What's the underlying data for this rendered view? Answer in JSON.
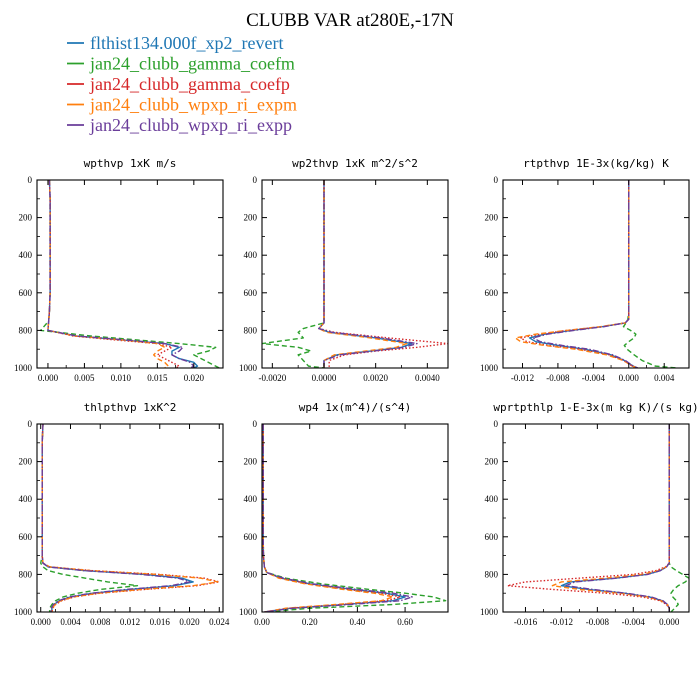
{
  "title": "CLUBB VAR at280E,-17N",
  "legend": [
    {
      "name": "flthist134.000f_xp2_revert",
      "color": "#1f77b4",
      "dash": "solid"
    },
    {
      "name": "jan24_clubb_gamma_coefm",
      "color": "#2ca02c",
      "dash": "dash"
    },
    {
      "name": "jan24_clubb_gamma_coefp",
      "color": "#d62728",
      "dash": "dot"
    },
    {
      "name": "jan24_clubb_wpxp_ri_expm",
      "color": "#ff7f0e",
      "dash": "dash"
    },
    {
      "name": "jan24_clubb_wpxp_ri_expp",
      "color": "#6a3d9a",
      "dash": "dashdot"
    }
  ],
  "chart_data": [
    {
      "type": "line",
      "title": "wpthvp  1xK m/s",
      "xlim": [
        -0.0015,
        0.024
      ],
      "xticks": [
        0.0,
        0.005,
        0.01,
        0.015,
        0.02
      ],
      "xticklabels": [
        "0.000",
        "0.005",
        "0.010",
        "0.015",
        "0.020"
      ],
      "ylim": [
        1000,
        0
      ],
      "yticks": [
        0,
        200,
        400,
        600,
        800,
        1000
      ],
      "y": [
        0,
        100,
        200,
        300,
        400,
        500,
        600,
        700,
        750,
        800,
        830,
        850,
        870,
        890,
        910,
        930,
        950,
        970,
        990,
        1000
      ],
      "series": [
        {
          "name": "flthist134.000f_xp2_revert",
          "values": [
            0.0002,
            0.0003,
            0.0003,
            0.0003,
            0.0003,
            0.0003,
            0.0003,
            0.0002,
            0.0001,
            0.0,
            0.004,
            0.01,
            0.016,
            0.018,
            0.017,
            0.017,
            0.018,
            0.02,
            0.0205,
            0.02
          ]
        },
        {
          "name": "jan24_clubb_gamma_coefm",
          "values": [
            0.0002,
            0.0003,
            0.0003,
            0.0003,
            0.0003,
            0.0003,
            0.0003,
            0.0002,
            0.0001,
            -0.001,
            0.006,
            0.012,
            0.018,
            0.023,
            0.022,
            0.02,
            0.021,
            0.022,
            0.023,
            0.0235
          ]
        },
        {
          "name": "jan24_clubb_gamma_coefp",
          "values": [
            0.0002,
            0.0003,
            0.0003,
            0.0003,
            0.0003,
            0.0003,
            0.0003,
            0.0002,
            0.0001,
            0.0,
            0.0035,
            0.009,
            0.015,
            0.017,
            0.016,
            0.015,
            0.016,
            0.017,
            0.018,
            0.0175
          ]
        },
        {
          "name": "jan24_clubb_wpxp_ri_expm",
          "values": [
            0.0002,
            0.0003,
            0.0003,
            0.0003,
            0.0003,
            0.0003,
            0.0003,
            0.0002,
            0.0001,
            0.0,
            0.0038,
            0.01,
            0.015,
            0.016,
            0.015,
            0.0145,
            0.015,
            0.016,
            0.0165,
            0.016
          ]
        },
        {
          "name": "jan24_clubb_wpxp_ri_expp",
          "values": [
            0.0002,
            0.0003,
            0.0003,
            0.0003,
            0.0003,
            0.0003,
            0.0003,
            0.0002,
            0.0001,
            0.0,
            0.004,
            0.0105,
            0.016,
            0.0185,
            0.018,
            0.017,
            0.018,
            0.0195,
            0.02,
            0.0195
          ]
        }
      ]
    },
    {
      "type": "line",
      "title": "wp2thvp  1xK m^2/s^2",
      "xlim": [
        -0.0024,
        0.0048
      ],
      "xticks": [
        -0.002,
        0.0,
        0.002,
        0.004
      ],
      "xticklabels": [
        "-0.0020",
        "0.0000",
        "0.0020",
        "0.0040"
      ],
      "ylim": [
        1000,
        0
      ],
      "yticks": [
        0,
        200,
        400,
        600,
        800,
        1000
      ],
      "y": [
        0,
        200,
        400,
        600,
        700,
        760,
        790,
        810,
        840,
        870,
        890,
        910,
        930,
        960,
        990,
        1000
      ],
      "series": [
        {
          "name": "flthist134.000f_xp2_revert",
          "values": [
            0.0,
            0.0,
            0.0,
            0.0,
            0.0,
            0.0,
            -0.0002,
            0.0002,
            0.002,
            0.0034,
            0.003,
            0.0018,
            0.0005,
            0.0,
            0.0,
            0.0
          ]
        },
        {
          "name": "jan24_clubb_gamma_coefm",
          "values": [
            0.0,
            0.0,
            0.0,
            0.0,
            0.0,
            0.0,
            -0.0008,
            -0.001,
            -0.0008,
            -0.0024,
            -0.001,
            -0.0005,
            -0.001,
            -0.0008,
            -0.0006,
            0.0
          ]
        },
        {
          "name": "jan24_clubb_gamma_coefp",
          "values": [
            0.0,
            0.0,
            0.0,
            0.0,
            0.0,
            0.0,
            -0.0002,
            0.0004,
            0.0025,
            0.0048,
            0.0036,
            0.002,
            0.0008,
            0.0002,
            0.0002,
            0.0002
          ]
        },
        {
          "name": "jan24_clubb_wpxp_ri_expm",
          "values": [
            0.0,
            0.0,
            0.0,
            0.0,
            0.0,
            0.0,
            -0.0002,
            0.0001,
            0.0018,
            0.0032,
            0.0028,
            0.0016,
            0.0004,
            0.0,
            0.0,
            0.0
          ]
        },
        {
          "name": "jan24_clubb_wpxp_ri_expp",
          "values": [
            0.0,
            0.0,
            0.0,
            0.0,
            0.0,
            0.0,
            -0.0002,
            0.0003,
            0.0022,
            0.0036,
            0.0031,
            0.0019,
            0.0006,
            0.0,
            0.0,
            0.0
          ]
        }
      ]
    },
    {
      "type": "line",
      "title": "rtpthvp   1E-3x(kg/kg) K",
      "xlim": [
        -0.0142,
        0.0068
      ],
      "xticks": [
        -0.012,
        -0.008,
        -0.004,
        0.0,
        0.004
      ],
      "xticklabels": [
        "-0.012",
        "-0.008",
        "-0.004",
        "0.000",
        "0.004"
      ],
      "ylim": [
        1000,
        0
      ],
      "yticks": [
        0,
        200,
        400,
        600,
        800,
        1000
      ],
      "y": [
        0,
        200,
        400,
        600,
        700,
        740,
        760,
        780,
        800,
        820,
        840,
        860,
        880,
        900,
        930,
        960,
        990,
        1000
      ],
      "series": [
        {
          "name": "flthist134.000f_xp2_revert",
          "values": [
            0.0,
            0.0,
            0.0,
            0.0,
            0.0,
            0.0,
            -0.0004,
            -0.003,
            -0.0065,
            -0.0095,
            -0.0112,
            -0.0105,
            -0.008,
            -0.005,
            -0.002,
            -0.0005,
            0.0005,
            0.001
          ]
        },
        {
          "name": "jan24_clubb_gamma_coefm",
          "values": [
            0.0,
            0.0,
            0.0,
            0.0,
            0.0,
            -0.0001,
            -0.0003,
            -0.0006,
            0.0002,
            0.0008,
            0.0006,
            0.0,
            -0.0005,
            -0.0002,
            0.0006,
            0.0015,
            0.003,
            0.0055
          ]
        },
        {
          "name": "jan24_clubb_gamma_coefp",
          "values": [
            0.0,
            0.0,
            0.0,
            0.0,
            0.0,
            0.0,
            -0.0004,
            -0.003,
            -0.007,
            -0.01,
            -0.0122,
            -0.0115,
            -0.009,
            -0.0055,
            -0.0022,
            -0.0006,
            0.0004,
            0.001
          ]
        },
        {
          "name": "jan24_clubb_wpxp_ri_expm",
          "values": [
            0.0,
            0.0,
            0.0,
            0.0,
            0.0,
            0.0,
            -0.0004,
            -0.0032,
            -0.007,
            -0.0105,
            -0.0128,
            -0.0122,
            -0.0095,
            -0.006,
            -0.0025,
            -0.0006,
            0.0004,
            0.001
          ]
        },
        {
          "name": "jan24_clubb_wpxp_ri_expp",
          "values": [
            0.0,
            0.0,
            0.0,
            0.0,
            0.0,
            0.0,
            -0.0004,
            -0.0028,
            -0.0062,
            -0.0092,
            -0.0108,
            -0.01,
            -0.0075,
            -0.0045,
            -0.0018,
            -0.0004,
            0.0005,
            0.001
          ]
        }
      ]
    },
    {
      "type": "line",
      "title": "thlpthvp   1xK^2",
      "xlim": [
        -0.0005,
        0.0245
      ],
      "xticks": [
        0.0,
        0.004,
        0.008,
        0.012,
        0.016,
        0.02,
        0.024
      ],
      "xticklabels": [
        "0.000",
        "0.004",
        "0.008",
        "0.012",
        "0.016",
        "0.020",
        "0.024"
      ],
      "ylim": [
        1000,
        0
      ],
      "yticks": [
        0,
        200,
        400,
        600,
        800,
        1000
      ],
      "y": [
        0,
        100,
        200,
        400,
        600,
        700,
        740,
        760,
        780,
        800,
        820,
        840,
        860,
        880,
        900,
        920,
        940,
        960,
        980,
        1000
      ],
      "series": [
        {
          "name": "flthist134.000f_xp2_revert",
          "values": [
            0.0003,
            0.0002,
            0.0002,
            0.0002,
            0.0002,
            0.0002,
            0.0003,
            0.001,
            0.006,
            0.014,
            0.019,
            0.0205,
            0.018,
            0.012,
            0.007,
            0.004,
            0.0025,
            0.0018,
            0.0015,
            0.0015
          ]
        },
        {
          "name": "jan24_clubb_gamma_coefm",
          "values": [
            0.0003,
            0.0002,
            0.0002,
            0.0002,
            0.0002,
            0.0002,
            0.0,
            0.0003,
            0.001,
            0.003,
            0.006,
            0.009,
            0.013,
            0.008,
            0.005,
            0.003,
            0.002,
            0.0015,
            0.0012,
            0.0012
          ]
        },
        {
          "name": "jan24_clubb_gamma_coefp",
          "values": [
            0.0003,
            0.0002,
            0.0002,
            0.0002,
            0.0002,
            0.0002,
            0.0003,
            0.0012,
            0.007,
            0.016,
            0.022,
            0.024,
            0.021,
            0.014,
            0.008,
            0.0045,
            0.0028,
            0.002,
            0.0016,
            0.0015
          ]
        },
        {
          "name": "jan24_clubb_wpxp_ri_expm",
          "values": [
            0.0003,
            0.0002,
            0.0002,
            0.0002,
            0.0002,
            0.0002,
            0.0003,
            0.0012,
            0.0068,
            0.0155,
            0.0215,
            0.0238,
            0.0205,
            0.0135,
            0.0078,
            0.0044,
            0.0027,
            0.0019,
            0.0016,
            0.0015
          ]
        },
        {
          "name": "jan24_clubb_wpxp_ri_expp",
          "values": [
            0.0003,
            0.0002,
            0.0002,
            0.0002,
            0.0002,
            0.0002,
            0.0003,
            0.001,
            0.0058,
            0.0135,
            0.0185,
            0.02,
            0.0175,
            0.0115,
            0.0068,
            0.0038,
            0.0024,
            0.0017,
            0.0014,
            0.0014
          ]
        }
      ]
    },
    {
      "type": "line",
      "title": "wp4   1x(m^4)/(s^4)",
      "xlim": [
        0.0,
        0.78
      ],
      "xticks": [
        0.0,
        0.2,
        0.4,
        0.6
      ],
      "xticklabels": [
        "0.00",
        "0.20",
        "0.40",
        "0.60"
      ],
      "ylim": [
        1000,
        0
      ],
      "yticks": [
        0,
        200,
        400,
        600,
        800,
        1000
      ],
      "y": [
        0,
        200,
        400,
        600,
        700,
        760,
        790,
        820,
        850,
        880,
        900,
        920,
        940,
        960,
        980,
        1000
      ],
      "series": [
        {
          "name": "flthist134.000f_xp2_revert",
          "values": [
            0.005,
            0.005,
            0.005,
            0.005,
            0.006,
            0.01,
            0.02,
            0.08,
            0.2,
            0.38,
            0.52,
            0.6,
            0.55,
            0.35,
            0.12,
            0.01
          ]
        },
        {
          "name": "jan24_clubb_gamma_coefm",
          "values": [
            0.005,
            0.005,
            0.005,
            0.005,
            0.006,
            0.01,
            0.02,
            0.1,
            0.25,
            0.45,
            0.6,
            0.72,
            0.77,
            0.55,
            0.2,
            0.02
          ]
        },
        {
          "name": "jan24_clubb_gamma_coefp",
          "values": [
            0.005,
            0.005,
            0.005,
            0.005,
            0.006,
            0.01,
            0.02,
            0.08,
            0.19,
            0.36,
            0.5,
            0.58,
            0.52,
            0.33,
            0.11,
            0.01
          ]
        },
        {
          "name": "jan24_clubb_wpxp_ri_expm",
          "values": [
            0.005,
            0.005,
            0.005,
            0.005,
            0.006,
            0.01,
            0.02,
            0.07,
            0.18,
            0.34,
            0.47,
            0.55,
            0.5,
            0.31,
            0.1,
            0.01
          ]
        },
        {
          "name": "jan24_clubb_wpxp_ri_expp",
          "values": [
            0.005,
            0.005,
            0.005,
            0.005,
            0.006,
            0.01,
            0.02,
            0.09,
            0.21,
            0.4,
            0.55,
            0.63,
            0.58,
            0.37,
            0.13,
            0.01
          ]
        }
      ]
    },
    {
      "type": "line",
      "title": "wprtpthlp   1-E-3x(m kg K)/(s kg)",
      "xlim": [
        -0.0185,
        0.0022
      ],
      "xticks": [
        -0.016,
        -0.012,
        -0.008,
        -0.004,
        0.0
      ],
      "xticklabels": [
        "-0.016",
        "-0.012",
        "-0.008",
        "-0.004",
        "0.000"
      ],
      "ylim": [
        1000,
        0
      ],
      "yticks": [
        0,
        200,
        400,
        600,
        800,
        1000
      ],
      "y": [
        0,
        200,
        400,
        600,
        700,
        740,
        760,
        780,
        800,
        820,
        840,
        860,
        880,
        900,
        920,
        940,
        960,
        980,
        1000
      ],
      "series": [
        {
          "name": "flthist134.000f_xp2_revert",
          "values": [
            0.0,
            0.0,
            0.0,
            0.0,
            0.0,
            0.0,
            -0.0003,
            -0.001,
            -0.0025,
            -0.006,
            -0.011,
            -0.012,
            -0.009,
            -0.005,
            -0.0022,
            -0.0008,
            -0.0002,
            0.0,
            0.0
          ]
        },
        {
          "name": "jan24_clubb_gamma_coefm",
          "values": [
            0.0,
            0.0,
            0.0,
            0.0,
            0.0,
            0.0,
            0.0002,
            0.0008,
            0.0015,
            0.0022,
            0.0018,
            0.001,
            0.0005,
            0.0002,
            0.0004,
            0.0008,
            0.001,
            0.0006,
            0.0002
          ]
        },
        {
          "name": "jan24_clubb_gamma_coefp",
          "values": [
            0.0,
            0.0,
            0.0,
            0.0,
            0.0,
            0.0,
            -0.0004,
            -0.0015,
            -0.004,
            -0.01,
            -0.016,
            -0.018,
            -0.013,
            -0.007,
            -0.003,
            -0.001,
            -0.0003,
            0.0,
            0.0
          ]
        },
        {
          "name": "jan24_clubb_wpxp_ri_expm",
          "values": [
            0.0,
            0.0,
            0.0,
            0.0,
            0.0,
            0.0,
            -0.0003,
            -0.0012,
            -0.003,
            -0.007,
            -0.012,
            -0.013,
            -0.01,
            -0.0055,
            -0.0024,
            -0.0009,
            -0.0002,
            0.0,
            0.0
          ]
        },
        {
          "name": "jan24_clubb_wpxp_ri_expp",
          "values": [
            0.0,
            0.0,
            0.0,
            0.0,
            0.0,
            0.0,
            -0.0003,
            -0.001,
            -0.0024,
            -0.0058,
            -0.0105,
            -0.0115,
            -0.0085,
            -0.0048,
            -0.002,
            -0.0007,
            -0.0002,
            0.0,
            0.0
          ]
        }
      ]
    }
  ]
}
